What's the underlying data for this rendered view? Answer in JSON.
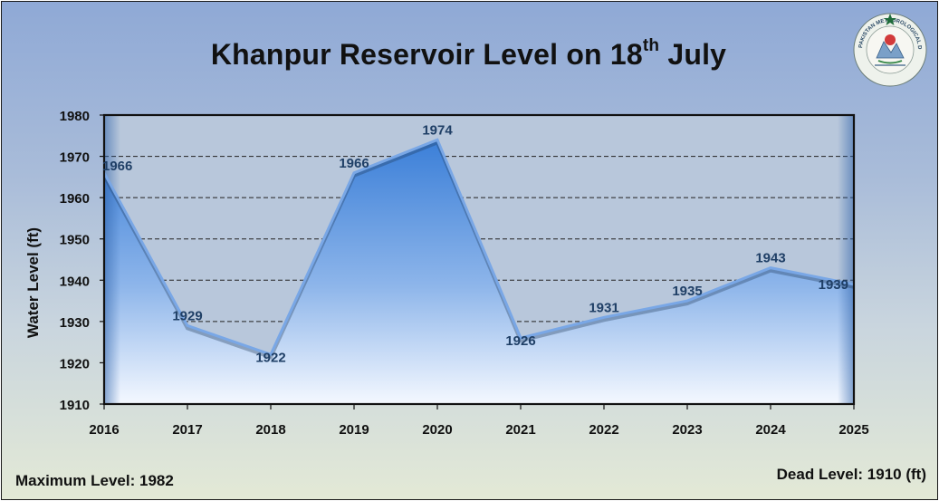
{
  "chart_data": {
    "type": "area",
    "title": "Khanpur Reservoir Level on 18th July",
    "title_main": "Khanpur Reservoir Level on 18",
    "title_sup": "th",
    "title_tail": " July",
    "ylabel": "Water Level (ft)",
    "xlabel": "",
    "categories": [
      "2016",
      "2017",
      "2018",
      "2019",
      "2020",
      "2021",
      "2022",
      "2023",
      "2024",
      "2025"
    ],
    "values": [
      1966,
      1929,
      1922,
      1966,
      1974,
      1926,
      1931,
      1935,
      1943,
      1939
    ],
    "ylim": [
      1910,
      1980
    ],
    "yticks": [
      "1910",
      "1920",
      "1930",
      "1940",
      "1950",
      "1960",
      "1970",
      "1980"
    ],
    "grid": true,
    "legend": "none",
    "colors": {
      "area_top": "#3b7fd8",
      "area_bottom": "#f4f8ff",
      "line": "#6a9de3",
      "label": "#1f3f66"
    }
  },
  "footer": {
    "max_level": "Maximum Level: 1982",
    "dead_level": "Dead Level: 1910 (ft)"
  },
  "logo": {
    "name": "pakistan-meteorological-department-logo",
    "text": "PAKISTAN METEOROLOGICAL DEPARTMENT"
  }
}
